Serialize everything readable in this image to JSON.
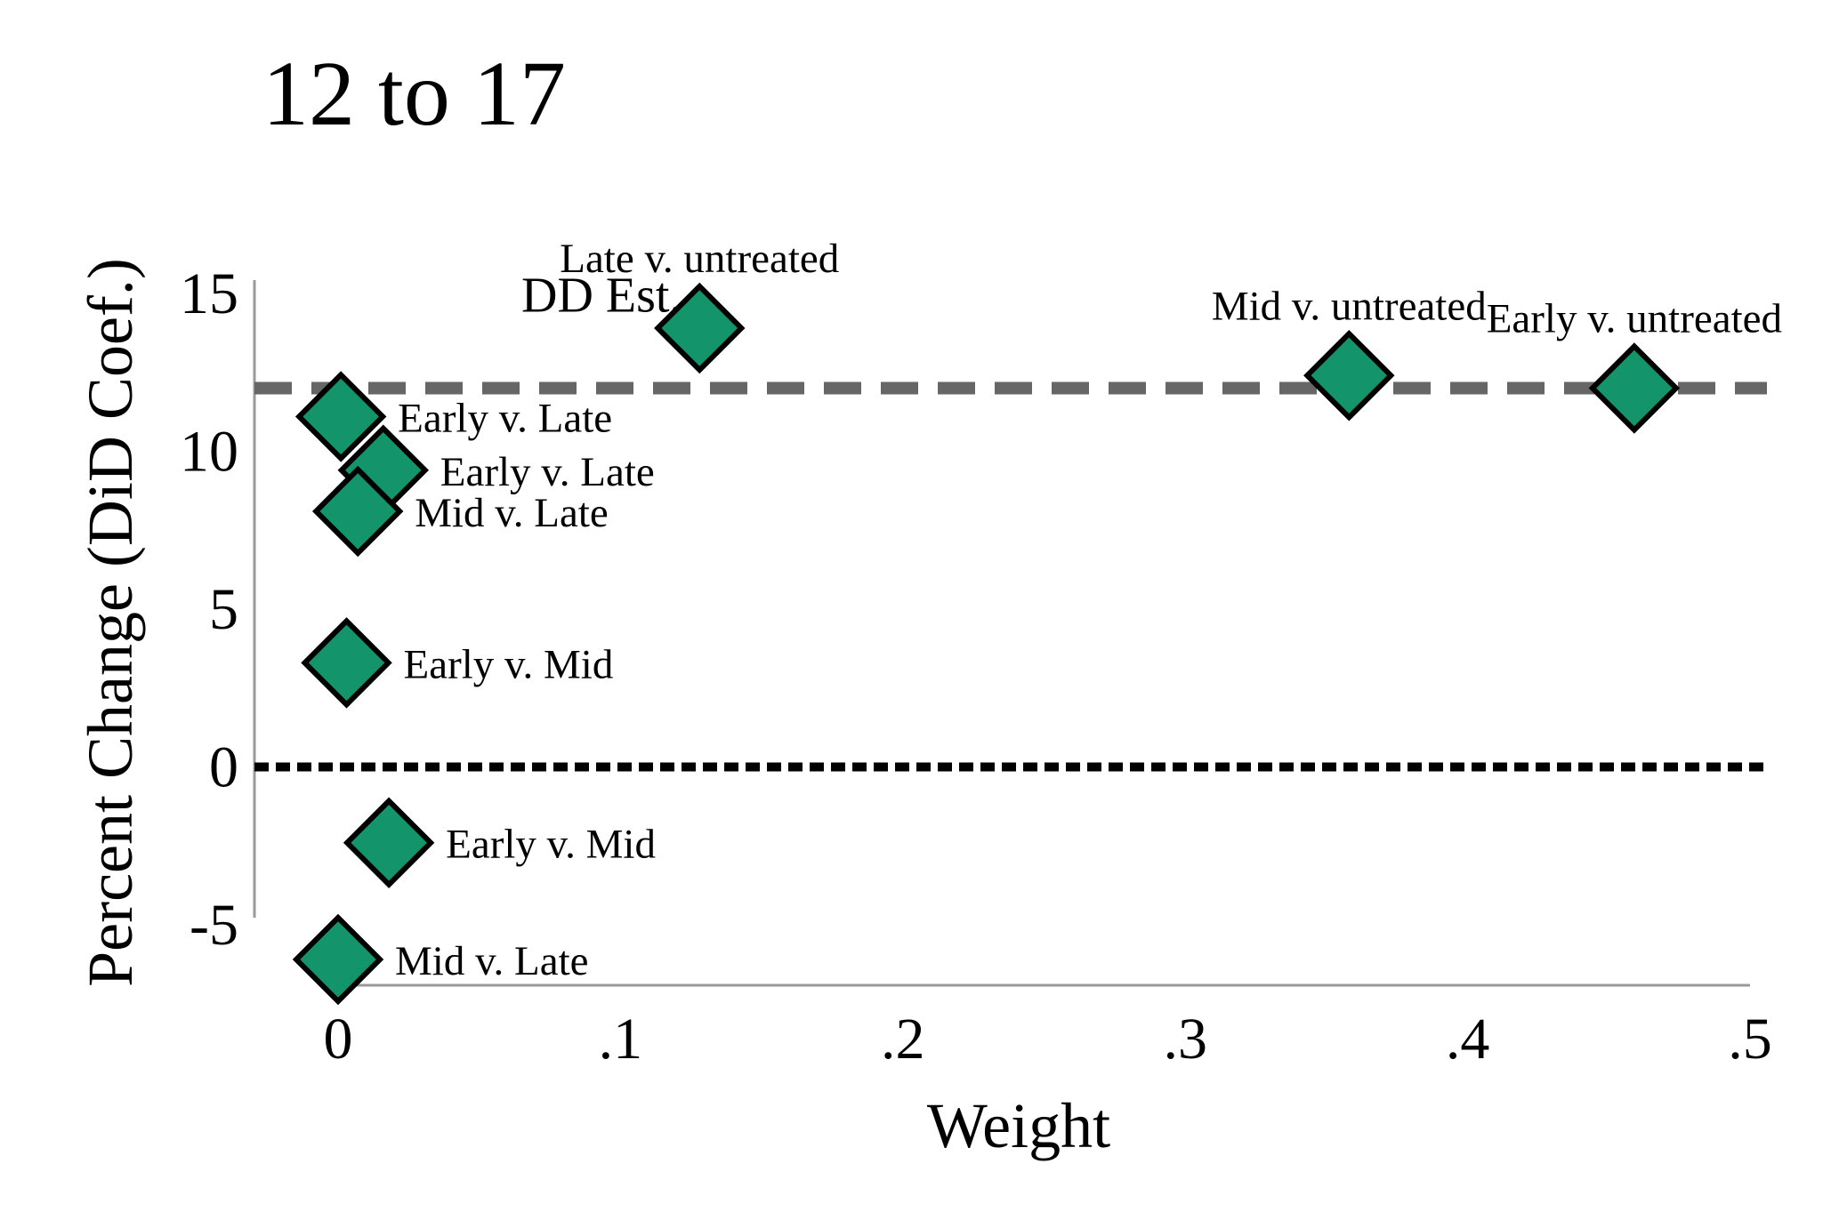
{
  "chart_data": {
    "type": "scatter",
    "title": "12 to 17",
    "xlabel": "Weight",
    "ylabel": "Percent Change (DiD Coef.)",
    "xlim": [
      0,
      0.5
    ],
    "ylim": [
      -5,
      15
    ],
    "x_ticks": [
      {
        "value": 0,
        "label": "0"
      },
      {
        "value": 0.1,
        "label": ".1"
      },
      {
        "value": 0.2,
        "label": ".2"
      },
      {
        "value": 0.3,
        "label": ".3"
      },
      {
        "value": 0.4,
        "label": ".4"
      },
      {
        "value": 0.5,
        "label": ".5"
      }
    ],
    "y_ticks": [
      {
        "value": -5,
        "label": "-5"
      },
      {
        "value": 0,
        "label": "0"
      },
      {
        "value": 5,
        "label": "5"
      },
      {
        "value": 10,
        "label": "10"
      },
      {
        "value": 15,
        "label": "15"
      }
    ],
    "grid": false,
    "marker": "diamond",
    "marker_color": "#13946b",
    "marker_edge_color": "#000000",
    "points": [
      {
        "x": 0.128,
        "y": 13.9,
        "label": "Late v. untreated",
        "label_pos": "above"
      },
      {
        "x": 0.358,
        "y": 12.4,
        "label": "Mid v. untreated",
        "label_pos": "above"
      },
      {
        "x": 0.459,
        "y": 12.0,
        "label": "Early v. untreated",
        "label_pos": "above"
      },
      {
        "x": 0.001,
        "y": 11.1,
        "label": "Early v. Late",
        "label_pos": "right"
      },
      {
        "x": 0.016,
        "y": 9.4,
        "label": "Early v. Late",
        "label_pos": "right"
      },
      {
        "x": 0.007,
        "y": 8.1,
        "label": "Mid v. Late",
        "label_pos": "right"
      },
      {
        "x": 0.003,
        "y": 3.3,
        "label": "Early v. Mid",
        "label_pos": "right"
      },
      {
        "x": 0.018,
        "y": -2.4,
        "label": "Early v. Mid",
        "label_pos": "right"
      },
      {
        "x": 0.0,
        "y": -6.1,
        "label": "Mid v. Late",
        "label_pos": "right"
      }
    ],
    "reference_lines": [
      {
        "y": 12.0,
        "label": "DD Est.",
        "style": "dashed",
        "color": "#666666"
      },
      {
        "y": 0,
        "label": "",
        "style": "dotted",
        "color": "#000000"
      }
    ]
  }
}
